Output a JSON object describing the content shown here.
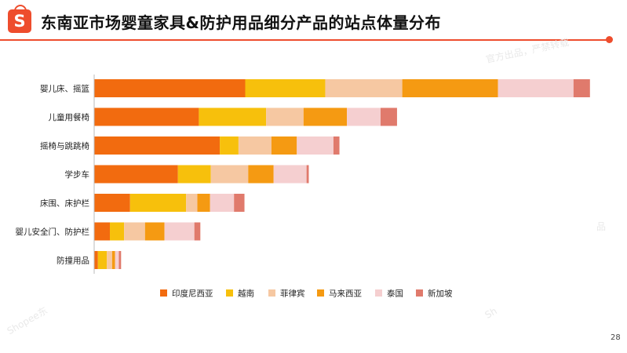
{
  "header": {
    "title": "东南亚市场婴童家具&防护用品细分产品的站点体量分布",
    "logo_letter": "S"
  },
  "watermarks": [
    "官方出品，严禁转载",
    "Shopee东",
    "Sh",
    "品"
  ],
  "page_number": "28",
  "colors": {
    "accent": "#ee4d2d",
    "series": [
      "#f26b0f",
      "#f7c00c",
      "#f6c8a2",
      "#f59a12",
      "#f5cfd0",
      "#e07a6c"
    ]
  },
  "chart_data": {
    "type": "bar",
    "orientation": "horizontal",
    "stacked": true,
    "categories": [
      "婴儿床、摇篮",
      "儿童用餐椅",
      "摇椅与跳跳椅",
      "学步车",
      "床围、床护栏",
      "婴儿安全门、防护栏",
      "防撞用品"
    ],
    "series": [
      {
        "name": "印度尼西亚",
        "values": [
          202,
          140,
          168,
          112,
          48,
          21,
          5
        ]
      },
      {
        "name": "越南",
        "values": [
          107,
          90,
          25,
          44,
          75,
          19,
          12
        ]
      },
      {
        "name": "菲律宾",
        "values": [
          103,
          50,
          44,
          50,
          15,
          28,
          7
        ]
      },
      {
        "name": "马来西亚",
        "values": [
          128,
          58,
          34,
          34,
          17,
          26,
          4
        ]
      },
      {
        "name": "泰国",
        "values": [
          101,
          45,
          49,
          44,
          32,
          40,
          5
        ]
      },
      {
        "name": "新加坡",
        "values": [
          22,
          22,
          8,
          3,
          14,
          8,
          3
        ]
      }
    ],
    "xlim": [
      0,
      680
    ],
    "grid": false,
    "legend_position": "bottom"
  }
}
